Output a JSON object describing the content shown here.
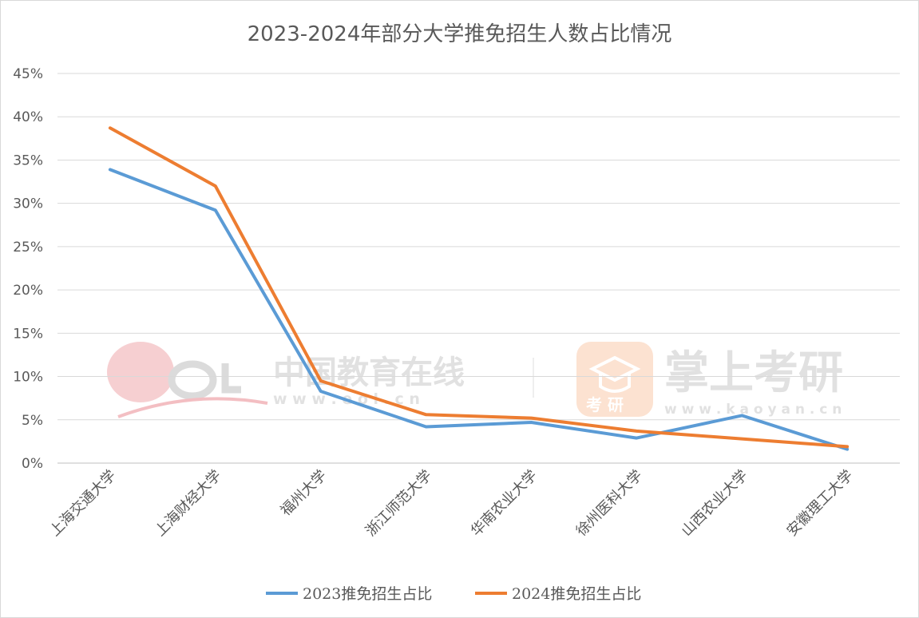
{
  "chart_data": {
    "type": "line",
    "title": "2023-2024年部分大学推免招生人数占比情况",
    "categories": [
      "上海交通大学",
      "上海财经大学",
      "福州大学",
      "浙江师范大学",
      "华南农业大学",
      "徐州医科大学",
      "山西农业大学",
      "安徽理工大学"
    ],
    "series": [
      {
        "name": "2023推免招生占比",
        "color": "#5b9bd5",
        "values": [
          33.9,
          29.2,
          8.3,
          4.2,
          4.7,
          2.9,
          5.5,
          1.6
        ]
      },
      {
        "name": "2024推免招生占比",
        "color": "#ed7d31",
        "values": [
          38.7,
          32.0,
          9.5,
          5.6,
          5.2,
          3.7,
          2.8,
          1.9
        ]
      }
    ],
    "y_ticks": [
      "0%",
      "5%",
      "10%",
      "15%",
      "20%",
      "25%",
      "30%",
      "35%",
      "40%",
      "45%"
    ],
    "ylim": [
      0,
      45
    ],
    "grid": true,
    "legend": "bottom"
  },
  "watermark": {
    "left_name": "中国教育在线",
    "left_url": "w w w . e o l . c n",
    "right_name": "掌上考研",
    "right_url": "w w w . k a o y a n . c n",
    "badge_text": "考 研"
  }
}
